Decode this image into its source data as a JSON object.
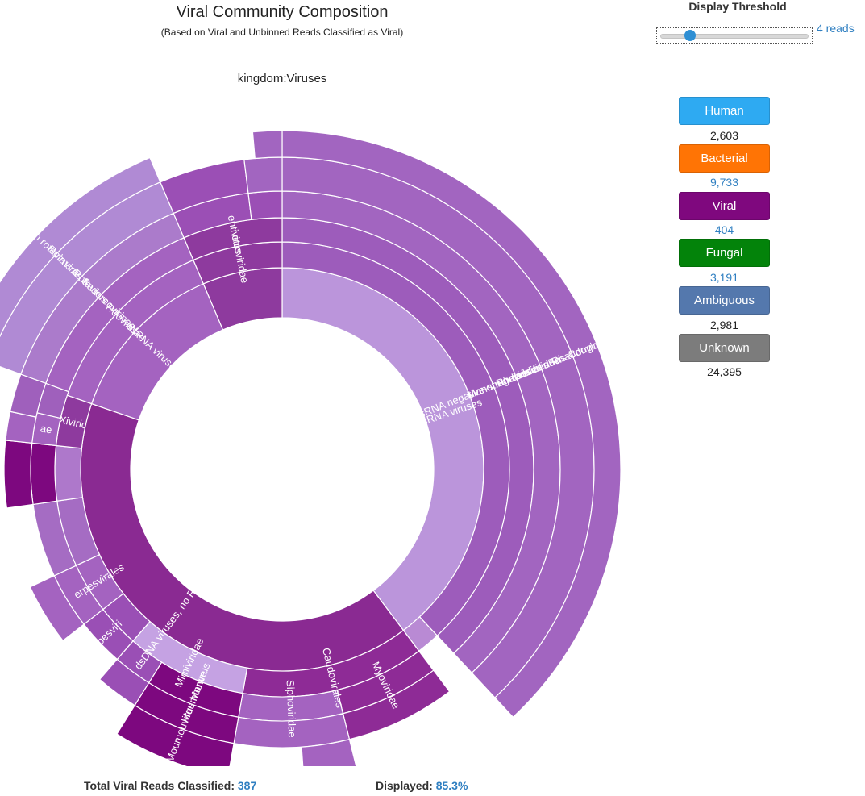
{
  "chart_data": {
    "type": "sunburst",
    "title": "Viral Community Composition",
    "subtitle": "(Based on Viral and Unbinned Reads Classified as Viral)",
    "root_label": "kingdom:Viruses",
    "segments": [
      {
        "ring": 1,
        "start": 0,
        "end": 143,
        "color": "#bb95db",
        "label": "ssRNA viruses"
      },
      {
        "ring": 1,
        "start": 143,
        "end": 289,
        "color": "#8a2a92",
        "label": "dsDNA viruses, no RNA stage"
      },
      {
        "ring": 1,
        "start": 289,
        "end": 337,
        "color": "#a463c0",
        "label": "dsRNA viruses"
      },
      {
        "ring": 1,
        "start": 337,
        "end": 360,
        "color": "#8e3a9e",
        "label": ""
      },
      {
        "ring": 2,
        "start": 0,
        "end": 137,
        "color": "#9d5cbb",
        "label": "ssRNA negative-strand viruses"
      },
      {
        "ring": 2,
        "start": 137,
        "end": 143,
        "color": "#b98ad4",
        "label": ""
      },
      {
        "ring": 2,
        "start": 143,
        "end": 190,
        "color": "#8e2b96",
        "label": "Caudovirales"
      },
      {
        "ring": 2,
        "start": 190,
        "end": 221,
        "color": "#c5a2e3",
        "label": "Mimiviridae"
      },
      {
        "ring": 2,
        "start": 221,
        "end": 232,
        "color": "#9a4fb5",
        "label": ""
      },
      {
        "ring": 2,
        "start": 232,
        "end": 245,
        "color": "#a463c0",
        "label": "erpesvirales"
      },
      {
        "ring": 2,
        "start": 245,
        "end": 262,
        "color": "#a56cc3",
        "label": ""
      },
      {
        "ring": 2,
        "start": 262,
        "end": 276,
        "color": "#ae78cb",
        "label": ""
      },
      {
        "ring": 2,
        "start": 276,
        "end": 289,
        "color": "#8e3a9e",
        "label": "Xiviric"
      },
      {
        "ring": 2,
        "start": 289,
        "end": 337,
        "color": "#a463c0",
        "label": "Reoviridae"
      },
      {
        "ring": 2,
        "start": 337,
        "end": 360,
        "color": "#8e3a9e",
        "label": "etroviridae"
      },
      {
        "ring": 3,
        "start": 0,
        "end": 137,
        "color": "#9d5cbb",
        "label": "Mononegavirales"
      },
      {
        "ring": 3,
        "start": 143,
        "end": 166,
        "color": "#8e2b96",
        "label": "Myoviridae"
      },
      {
        "ring": 3,
        "start": 166,
        "end": 190,
        "color": "#a463c0",
        "label": "Siphoviridae"
      },
      {
        "ring": 3,
        "start": 190,
        "end": 212,
        "color": "#7d087f",
        "label": "Moumouvirus"
      },
      {
        "ring": 3,
        "start": 212,
        "end": 221,
        "color": "#9a4fb5",
        "label": ""
      },
      {
        "ring": 3,
        "start": 221,
        "end": 232,
        "color": "#9a4fb5",
        "label": "rpesviri"
      },
      {
        "ring": 3,
        "start": 232,
        "end": 245,
        "color": "#a463c0",
        "label": ""
      },
      {
        "ring": 3,
        "start": 245,
        "end": 262,
        "color": "#a56cc3",
        "label": ""
      },
      {
        "ring": 3,
        "start": 262,
        "end": 276,
        "color": "#7d087f",
        "label": ""
      },
      {
        "ring": 3,
        "start": 276,
        "end": 283,
        "color": "#a463c0",
        "label": "ae"
      },
      {
        "ring": 3,
        "start": 283,
        "end": 290,
        "color": "#9f60bc",
        "label": ""
      },
      {
        "ring": 3,
        "start": 290,
        "end": 337,
        "color": "#a463c0",
        "label": "Sedoreovirinae"
      },
      {
        "ring": 3,
        "start": 337,
        "end": 360,
        "color": "#8e3a9e",
        "label": "entivirus"
      },
      {
        "ring": 4,
        "start": 0,
        "end": 137,
        "color": "#a265c0",
        "label": "Rhabdoviridae"
      },
      {
        "ring": 4,
        "start": 143,
        "end": 166,
        "color": "#8e2b96",
        "label": ""
      },
      {
        "ring": 4,
        "start": 166,
        "end": 190,
        "color": "#a463c0",
        "label": ""
      },
      {
        "ring": 4,
        "start": 190,
        "end": 212,
        "color": "#7d087f",
        "label": "Moumouvirus Monve"
      },
      {
        "ring": 4,
        "start": 212,
        "end": 221,
        "color": "#9a4fb5",
        "label": ""
      },
      {
        "ring": 4,
        "start": 232,
        "end": 245,
        "color": "#a463c0",
        "label": ""
      },
      {
        "ring": 4,
        "start": 262,
        "end": 276,
        "color": "#7d087f",
        "label": ""
      },
      {
        "ring": 4,
        "start": 276,
        "end": 282,
        "color": "#a463c0",
        "label": ""
      },
      {
        "ring": 4,
        "start": 282,
        "end": 290,
        "color": "#9f60bc",
        "label": ""
      },
      {
        "ring": 4,
        "start": 290,
        "end": 337,
        "color": "#ab7bcb",
        "label": "Rotavirus"
      },
      {
        "ring": 4,
        "start": 337,
        "end": 353,
        "color": "#9b4fb5",
        "label": ""
      },
      {
        "ring": 4,
        "start": 353,
        "end": 360,
        "color": "#9b4fb5",
        "label": ""
      },
      {
        "ring": 5,
        "start": 0,
        "end": 137,
        "color": "#a265c0",
        "label": "unclassified Rhabdoviridae"
      },
      {
        "ring": 5,
        "start": 166,
        "end": 176,
        "color": "#a463c0",
        "label": ""
      },
      {
        "ring": 5,
        "start": 190,
        "end": 212,
        "color": "#7d087f",
        "label": ""
      },
      {
        "ring": 5,
        "start": 290,
        "end": 337,
        "color": "#b08ad4",
        "label": "Rotavirus A"
      },
      {
        "ring": 5,
        "start": 337,
        "end": 353,
        "color": "#9b4fb5",
        "label": ""
      },
      {
        "ring": 5,
        "start": 353,
        "end": 360,
        "color": "#a265c0",
        "label": ""
      },
      {
        "ring": 6,
        "start": 0,
        "end": 137,
        "color": "#a265c0",
        "label": "Bas-Congo virus"
      },
      {
        "ring": 6,
        "start": 290,
        "end": 337,
        "color": "#b08ad4",
        "label": "Human rotavirus A"
      },
      {
        "ring": 6,
        "start": 355,
        "end": 360,
        "color": "#a265c0",
        "label": ""
      }
    ]
  },
  "threshold": {
    "title": "Display Threshold",
    "value": "4 reads",
    "level": 0.2
  },
  "categories": [
    {
      "key": "human",
      "label": "Human",
      "count": "2,603",
      "color": "#2eaaf2",
      "count_color": "#222222"
    },
    {
      "key": "bacterial",
      "label": "Bacterial",
      "count": "9,733",
      "color": "#ff7405",
      "count_color": "#2f7fc1"
    },
    {
      "key": "viral",
      "label": "Viral",
      "count": "404",
      "color": "#7f087e",
      "count_color": "#2f7fc1"
    },
    {
      "key": "fungal",
      "label": "Fungal",
      "count": "3,191",
      "color": "#03830a",
      "count_color": "#2f7fc1"
    },
    {
      "key": "ambiguous",
      "label": "Ambiguous",
      "count": "2,981",
      "color": "#5478ad",
      "count_color": "#222222"
    },
    {
      "key": "unknown",
      "label": "Unknown",
      "count": "24,395",
      "color": "#7c7c7c",
      "count_color": "#222222"
    }
  ],
  "footer": {
    "total_label": "Total Viral Reads Classified:",
    "total_value": "387",
    "displayed_label": "Displayed:",
    "displayed_value": "85.3%"
  }
}
